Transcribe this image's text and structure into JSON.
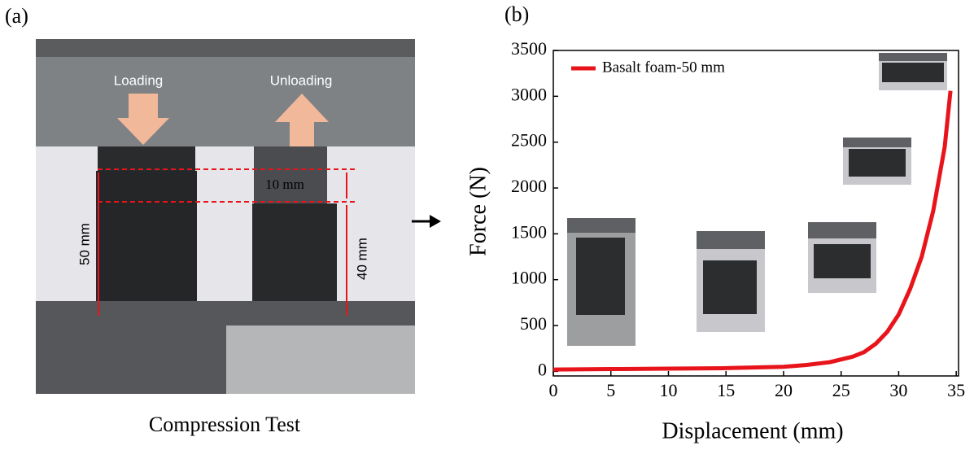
{
  "panel_a": {
    "label": "(a)",
    "loading": "Loading",
    "unloading": "Unloading",
    "height_full": "50 mm",
    "compression": "10 mm",
    "height_after": "40 mm",
    "caption": "Compression Test"
  },
  "chart_data": {
    "type": "line",
    "panel_label": "(b)",
    "x_label": "Displacement (mm)",
    "y_label": "Force (N)",
    "xlim": [
      0,
      35.2
    ],
    "ylim": [
      -50,
      3500
    ],
    "xticks": [
      0,
      5,
      10,
      15,
      20,
      25,
      30,
      35
    ],
    "yticks": [
      0,
      500,
      1000,
      1500,
      2000,
      2500,
      3000,
      3500
    ],
    "legend": "top-left",
    "series": [
      {
        "name": "Basalt foam-50 mm",
        "color": "#e8141b",
        "x": [
          0,
          5,
          10,
          15,
          20,
          22,
          24,
          26,
          27,
          28,
          29,
          30,
          31,
          32,
          33,
          34,
          34.5
        ],
        "values": [
          20,
          25,
          30,
          35,
          50,
          70,
          100,
          160,
          210,
          300,
          430,
          620,
          900,
          1250,
          1750,
          2450,
          3060
        ]
      }
    ]
  }
}
